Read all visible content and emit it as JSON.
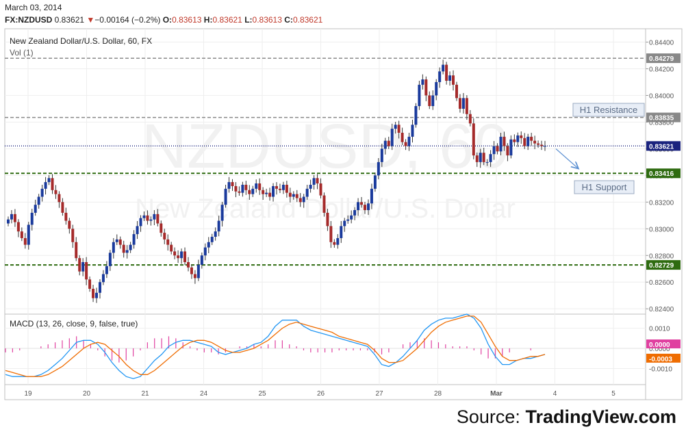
{
  "header": {
    "date": "March 03, 2014",
    "symbol": "FX:NZDUSD",
    "last": "0.83621",
    "change_arrow": "▼",
    "change": "−0.00164 (−0.2%)",
    "open_label": "O:",
    "open": "0.83613",
    "high_label": "H:",
    "high": "0.83621",
    "low_label": "L:",
    "low": "0.83613",
    "close_label": "C:",
    "close": "0.83621"
  },
  "footer": {
    "prefix": "Source: ",
    "brand": "TradingView.com"
  },
  "chart_data": [
    {
      "type": "candlestick",
      "title": "New Zealand Dollar/U.S. Dollar, 60, FX",
      "subtitle": "Vol (1)",
      "watermark": [
        "NZDUSD, 60",
        "New Zealand Dollar/U.S. Dollar"
      ],
      "x_ticks": [
        "19",
        "20",
        "21",
        "24",
        "25",
        "26",
        "27",
        "28",
        "Mar",
        "4",
        "5"
      ],
      "y_ticks": [
        "0.84400",
        "0.84200",
        "0.84000",
        "0.83800",
        "0.83600",
        "0.83400",
        "0.83200",
        "0.83000",
        "0.82800",
        "0.82600",
        "0.82400"
      ],
      "ylim": [
        0.8236,
        0.845
      ],
      "grid": true,
      "price_lines": [
        {
          "label": "0.84279",
          "value": 0.84279,
          "style": "dashed",
          "color": "#888888"
        },
        {
          "label": "0.83835",
          "value": 0.83835,
          "style": "dashed",
          "color": "#888888"
        },
        {
          "label": "0.83621",
          "value": 0.83621,
          "style": "dotted",
          "color": "#1a237e"
        },
        {
          "label": "0.83416",
          "value": 0.83416,
          "style": "dashed",
          "color": "#2e6b10"
        },
        {
          "label": "0.82729",
          "value": 0.82729,
          "style": "dashed",
          "color": "#2e6b10"
        }
      ],
      "annotations": [
        {
          "text": "H1 Resistance",
          "anchor_value": 0.83835
        },
        {
          "text": "H1 Support",
          "anchor_value": 0.83416
        }
      ],
      "projection_arrow": {
        "from": 0.8361,
        "to": 0.8344
      },
      "closes": [
        0.8307,
        0.8311,
        0.8305,
        0.8298,
        0.8293,
        0.8288,
        0.8303,
        0.8312,
        0.8318,
        0.8324,
        0.833,
        0.8335,
        0.8338,
        0.8329,
        0.8326,
        0.832,
        0.8312,
        0.8306,
        0.83,
        0.829,
        0.8278,
        0.8268,
        0.8275,
        0.8262,
        0.8255,
        0.8248,
        0.8252,
        0.826,
        0.8266,
        0.8272,
        0.8282,
        0.829,
        0.8292,
        0.8288,
        0.8282,
        0.8284,
        0.8288,
        0.8296,
        0.8302,
        0.8308,
        0.831,
        0.8306,
        0.8307,
        0.8311,
        0.8304,
        0.8297,
        0.8292,
        0.8288,
        0.8283,
        0.828,
        0.8278,
        0.8283,
        0.8275,
        0.8271,
        0.8266,
        0.8263,
        0.8273,
        0.828,
        0.8286,
        0.829,
        0.8294,
        0.8298,
        0.8306,
        0.8318,
        0.833,
        0.8335,
        0.8332,
        0.8328,
        0.8327,
        0.8333,
        0.8329,
        0.8326,
        0.833,
        0.8334,
        0.8329,
        0.8326,
        0.8327,
        0.8324,
        0.8332,
        0.833,
        0.8329,
        0.8333,
        0.8327,
        0.8324,
        0.8326,
        0.8323,
        0.832,
        0.8324,
        0.833,
        0.8333,
        0.8338,
        0.8334,
        0.8325,
        0.8312,
        0.8302,
        0.829,
        0.8288,
        0.8293,
        0.8302,
        0.8306,
        0.8307,
        0.831,
        0.8314,
        0.832,
        0.8318,
        0.8314,
        0.8319,
        0.833,
        0.834,
        0.835,
        0.836,
        0.8366,
        0.8362,
        0.8375,
        0.8378,
        0.8372,
        0.8365,
        0.8362,
        0.8369,
        0.8378,
        0.8392,
        0.8408,
        0.8412,
        0.84,
        0.8392,
        0.84,
        0.841,
        0.8418,
        0.8423,
        0.8411,
        0.8415,
        0.8408,
        0.8398,
        0.839,
        0.8398,
        0.8386,
        0.8379,
        0.8355,
        0.835,
        0.8357,
        0.835,
        0.835,
        0.8356,
        0.8362,
        0.8358,
        0.8369,
        0.8362,
        0.8355,
        0.8367,
        0.8365,
        0.837,
        0.8368,
        0.8362,
        0.8369,
        0.8366,
        0.8364,
        0.8363,
        0.8362,
        0.83621
      ]
    },
    {
      "type": "line",
      "title": "MACD (13, 26, close, 9, false, true)",
      "y_ticks": [
        "0.0010",
        "0.0000",
        "-0.0010"
      ],
      "ylim": [
        -0.0018,
        0.0017
      ],
      "series": [
        {
          "color": "#2196f3",
          "values": [
            -0.0013,
            -0.0014,
            -0.0014,
            -0.0014,
            -0.0014,
            -0.0013,
            -0.0011,
            -0.0008,
            -0.0005,
            -0.0001,
            0.0003,
            0.0004,
            0.0004,
            0.0002,
            -0.0002,
            -0.0007,
            -0.0011,
            -0.0014,
            -0.0015,
            -0.0014,
            -0.001,
            -0.0006,
            -0.0003,
            0.0001,
            0.0003,
            0.0004,
            0.0004,
            0.0003,
            0.0002,
            0.0001,
            -0.0002,
            -0.0003,
            -0.0002,
            -0.0001,
            0.0,
            0.0002,
            0.0003,
            0.0006,
            0.0011,
            0.0014,
            0.0014,
            0.0014,
            0.0011,
            0.0009,
            0.0008,
            0.0007,
            0.0006,
            0.0005,
            0.0004,
            0.0003,
            0.0002,
            0.0001,
            -0.0003,
            -0.0008,
            -0.0009,
            -0.0007,
            -0.0004,
            0.0,
            0.0004,
            0.0009,
            0.0012,
            0.0014,
            0.0015,
            0.0015,
            0.0016,
            0.0017,
            0.0015,
            0.001,
            0.0002,
            -0.0004,
            -0.0008,
            -0.0008,
            -0.0006,
            -0.0005,
            -0.0005,
            -0.0004,
            -0.0003
          ]
        },
        {
          "color": "#ef6c00",
          "values": [
            -0.0011,
            -0.0012,
            -0.0013,
            -0.0014,
            -0.0014,
            -0.0014,
            -0.0013,
            -0.0011,
            -0.0009,
            -0.0006,
            -0.0003,
            0.0,
            0.0002,
            0.0003,
            0.0002,
            -0.0001,
            -0.0004,
            -0.0008,
            -0.0011,
            -0.0013,
            -0.0013,
            -0.0011,
            -0.0008,
            -0.0005,
            -0.0002,
            0.0001,
            0.0003,
            0.0004,
            0.0004,
            0.0003,
            0.0001,
            -0.0001,
            -0.0002,
            -0.0002,
            -0.0001,
            0.0,
            0.0002,
            0.0004,
            0.0007,
            0.001,
            0.0012,
            0.0013,
            0.0012,
            0.0011,
            0.001,
            0.0009,
            0.0008,
            0.0006,
            0.0005,
            0.0004,
            0.0003,
            0.0002,
            -0.0001,
            -0.0005,
            -0.0007,
            -0.0007,
            -0.0006,
            -0.0003,
            0.0,
            0.0004,
            0.0008,
            0.0011,
            0.0013,
            0.0014,
            0.0015,
            0.0016,
            0.0016,
            0.0013,
            0.0007,
            0.0001,
            -0.0004,
            -0.0006,
            -0.0006,
            -0.0005,
            -0.0004,
            -0.0004,
            -0.0003
          ]
        }
      ],
      "histogram": {
        "color": "#e040a0",
        "values": [
          -0.0002,
          -0.0002,
          -0.0001,
          0.0,
          0.0,
          0.0001,
          0.0002,
          0.0003,
          0.0004,
          0.0005,
          0.0006,
          0.0004,
          0.0002,
          -0.0001,
          -0.0004,
          -0.0006,
          -0.0007,
          -0.0006,
          -0.0004,
          -0.0001,
          0.0003,
          0.0005,
          0.0005,
          0.0006,
          0.0005,
          0.0003,
          0.0001,
          -0.0001,
          -0.0002,
          -0.0002,
          -0.0003,
          -0.0002,
          0.0,
          0.0001,
          0.0001,
          0.0002,
          0.0001,
          0.0002,
          0.0004,
          0.0004,
          0.0002,
          0.0001,
          -0.0001,
          -0.0002,
          -0.0002,
          -0.0002,
          -0.0002,
          -0.0001,
          -0.0001,
          -0.0001,
          -0.0001,
          -0.0001,
          -0.0002,
          -0.0003,
          -0.0002,
          0.0,
          0.0002,
          0.0003,
          0.0004,
          0.0005,
          0.0004,
          0.0003,
          0.0002,
          0.0001,
          0.0001,
          0.0001,
          -0.0001,
          -0.0003,
          -0.0005,
          -0.0005,
          -0.0004,
          -0.0002,
          0.0,
          0.0,
          -0.0001,
          0.0,
          0.0
        ]
      },
      "value_labels": [
        {
          "label": "0.0000",
          "value": 0.0,
          "color": "#e040a0"
        },
        {
          "label": "-0.0003",
          "value": -0.0003,
          "color": "#ef6c00"
        }
      ]
    }
  ]
}
